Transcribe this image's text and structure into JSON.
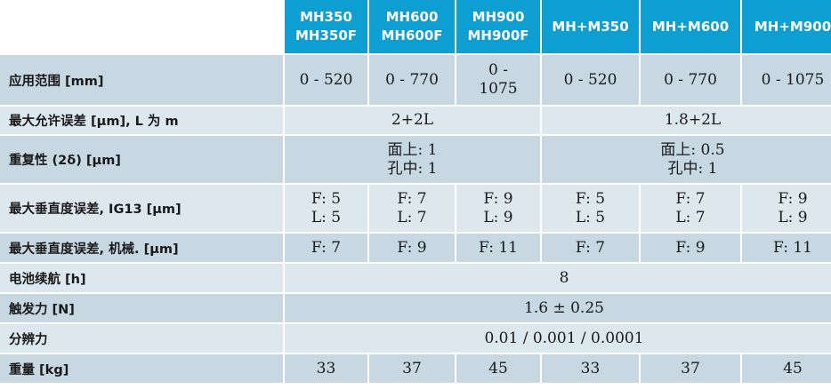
{
  "header": {
    "models": [
      {
        "line1": "MH350",
        "line2": "MH350F"
      },
      {
        "line1": "MH600",
        "line2": "MH600F"
      },
      {
        "line1": "MH900",
        "line2": "MH900F"
      },
      {
        "line1": "MH+M350",
        "line2": ""
      },
      {
        "line1": "MH+M600",
        "line2": ""
      },
      {
        "line1": "MH+M900",
        "line2": ""
      }
    ]
  },
  "rows": {
    "range": {
      "label": "应用范围 [mm]",
      "v1": "0 - 520",
      "v2": "0 - 770",
      "v3_line1": "0 -",
      "v3_line2": "1075",
      "v4": "0 - 520",
      "v5": "0 - 770",
      "v6": "0 - 1075"
    },
    "max_error": {
      "label": "最大允许误差 [µm], L 为 m",
      "group1": "2+2L",
      "group2": "1.8+2L"
    },
    "repeatability": {
      "label": "重复性 (2δ) [µm]",
      "group1_line1": "面上: 1",
      "group1_line2": "孔中: 1",
      "group2_line1": "面上: 0.5",
      "group2_line2": "孔中: 1"
    },
    "perp_ig13": {
      "label": "最大垂直度误差, IG13 [µm]",
      "cells": [
        {
          "f": "F: 5",
          "l": "L: 5"
        },
        {
          "f": "F: 7",
          "l": "L: 7"
        },
        {
          "f": "F: 9",
          "l": "L: 9"
        },
        {
          "f": "F: 5",
          "l": "L: 5"
        },
        {
          "f": "F: 7",
          "l": "L: 7"
        },
        {
          "f": "F: 9",
          "l": "L: 9"
        }
      ]
    },
    "perp_mech": {
      "label": "最大垂直度误差, 机械. [µm]",
      "cells": [
        "F: 7",
        "F: 9",
        "F: 11",
        "F: 7",
        "F: 9",
        "F: 11"
      ]
    },
    "battery": {
      "label": "电池续航 [h]",
      "value": "8"
    },
    "trigger_force": {
      "label": "触发力 [N]",
      "value": "1.6 ± 0.25"
    },
    "resolution": {
      "label": "分辨力",
      "value": "0.01 / 0.001 / 0.0001"
    },
    "weight": {
      "label": "重量 [kg]",
      "cells": [
        "33",
        "37",
        "45",
        "33",
        "37",
        "45"
      ]
    }
  },
  "colors": {
    "header_bg": "#0e9fd2",
    "row_light": "#dde8ee",
    "row_dark": "#c7d8e2"
  }
}
